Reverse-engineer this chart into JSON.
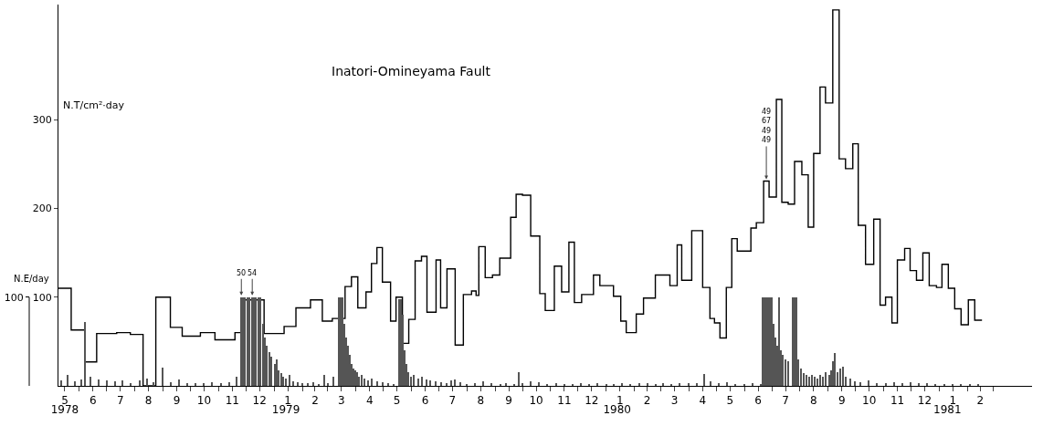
{
  "chart_data": {
    "type": "step",
    "title": "Inatori-Omineyama Fault",
    "ylabel": "N.T/cm²·day",
    "y2label": "N.E/day",
    "xlim": [
      "1978-05-09",
      "1981-04-13"
    ],
    "ylim": [
      0,
      430
    ],
    "yticks": [
      100,
      200,
      300
    ],
    "y2lim": [
      0,
      430
    ],
    "y2ticks": [
      100
    ],
    "xticks": [
      {
        "value": "1978-05-16",
        "label": "5"
      },
      {
        "value": "1978-06-01",
        "label": null
      },
      {
        "value": "1978-06-16",
        "label": "6"
      },
      {
        "value": "1978-07-01",
        "label": null
      },
      {
        "value": "1978-07-16",
        "label": "7"
      },
      {
        "value": "1978-08-01",
        "label": null
      },
      {
        "value": "1978-08-16",
        "label": "8"
      },
      {
        "value": "1978-09-01",
        "label": null
      },
      {
        "value": "1978-09-16",
        "label": "9"
      },
      {
        "value": "1978-10-01",
        "label": null
      },
      {
        "value": "1978-10-16",
        "label": "10"
      },
      {
        "value": "1978-11-01",
        "label": null
      },
      {
        "value": "1978-11-16",
        "label": "11"
      },
      {
        "value": "1978-12-01",
        "label": null
      },
      {
        "value": "1978-12-16",
        "label": "12"
      },
      {
        "value": "1979-01-01",
        "label": null
      },
      {
        "value": "1979-01-16",
        "label": "1"
      },
      {
        "value": "1979-02-01",
        "label": null
      },
      {
        "value": "1979-02-15",
        "label": "2"
      },
      {
        "value": "1979-03-01",
        "label": null
      },
      {
        "value": "1979-03-16",
        "label": "3"
      },
      {
        "value": "1979-04-01",
        "label": null
      },
      {
        "value": "1979-04-16",
        "label": "4"
      },
      {
        "value": "1979-05-01",
        "label": null
      },
      {
        "value": "1979-05-16",
        "label": "5"
      },
      {
        "value": "1979-06-01",
        "label": null
      },
      {
        "value": "1979-06-16",
        "label": "6"
      },
      {
        "value": "1979-07-01",
        "label": null
      },
      {
        "value": "1979-07-16",
        "label": "7"
      },
      {
        "value": "1979-08-01",
        "label": null
      },
      {
        "value": "1979-08-16",
        "label": "8"
      },
      {
        "value": "1979-09-01",
        "label": null
      },
      {
        "value": "1979-09-16",
        "label": "9"
      },
      {
        "value": "1979-10-01",
        "label": null
      },
      {
        "value": "1979-10-16",
        "label": "10"
      },
      {
        "value": "1979-11-01",
        "label": null
      },
      {
        "value": "1979-11-16",
        "label": "11"
      },
      {
        "value": "1979-12-01",
        "label": null
      },
      {
        "value": "1979-12-16",
        "label": "12"
      },
      {
        "value": "1980-01-01",
        "label": null
      },
      {
        "value": "1980-01-16",
        "label": "1"
      },
      {
        "value": "1980-02-01",
        "label": null
      },
      {
        "value": "1980-02-15",
        "label": "2"
      },
      {
        "value": "1980-03-01",
        "label": null
      },
      {
        "value": "1980-03-16",
        "label": "3"
      },
      {
        "value": "1980-04-01",
        "label": null
      },
      {
        "value": "1980-04-16",
        "label": "4"
      },
      {
        "value": "1980-05-01",
        "label": null
      },
      {
        "value": "1980-05-16",
        "label": "5"
      },
      {
        "value": "1980-06-01",
        "label": null
      },
      {
        "value": "1980-06-16",
        "label": "6"
      },
      {
        "value": "1980-07-01",
        "label": null
      },
      {
        "value": "1980-07-16",
        "label": "7"
      },
      {
        "value": "1980-08-01",
        "label": null
      },
      {
        "value": "1980-08-16",
        "label": "8"
      },
      {
        "value": "1980-09-01",
        "label": null
      },
      {
        "value": "1980-09-16",
        "label": "9"
      },
      {
        "value": "1980-10-01",
        "label": null
      },
      {
        "value": "1980-10-16",
        "label": "10"
      },
      {
        "value": "1980-11-01",
        "label": null
      },
      {
        "value": "1980-11-16",
        "label": "11"
      },
      {
        "value": "1980-12-01",
        "label": null
      },
      {
        "value": "1980-12-16",
        "label": "12"
      },
      {
        "value": "1981-01-01",
        "label": null
      },
      {
        "value": "1981-01-16",
        "label": "1"
      },
      {
        "value": "1981-02-01",
        "label": null
      },
      {
        "value": "1981-02-15",
        "label": "2"
      },
      {
        "value": "1981-03-01",
        "label": null
      }
    ],
    "x2lim": [
      "1978-05-09",
      "1981-04-13"
    ],
    "x2ticks": [
      {
        "value": "1978-05-16",
        "label": "1978"
      },
      {
        "value": "1979-01-14",
        "label": "1979"
      },
      {
        "value": "1980-01-13",
        "label": "1980"
      },
      {
        "value": "1981-01-10",
        "label": "1981"
      }
    ],
    "grid": false,
    "annotations": [
      {
        "text": "50",
        "x": "1978-11-26",
        "y": 100
      },
      {
        "text": "54",
        "x": "1978-12-08",
        "y": 100
      },
      {
        "text": "49\n67\n49\n49",
        "x": "1980-06-25",
        "y": 231
      }
    ],
    "series": [
      {
        "color": "#000000",
        "x": [
          "1978-05-09",
          "1978-05-23",
          "1978-06-07",
          "1978-06-20",
          "1978-07-12",
          "1978-07-27",
          "1978-08-10",
          "1978-08-24",
          "1978-09-09",
          "1978-09-22",
          "1978-10-12",
          "1978-10-28",
          "1978-11-19",
          "1978-11-26",
          "1978-12-21",
          "1979-01-12",
          "1979-01-25",
          "1979-02-10",
          "1979-02-23",
          "1979-03-06",
          "1979-03-12",
          "1979-03-20",
          "1979-03-27",
          "1979-04-03",
          "1979-04-12",
          "1979-04-18",
          "1979-04-24",
          "1979-04-30",
          "1979-05-09",
          "1979-05-15",
          "1979-05-22",
          "1979-05-29",
          "1979-06-05",
          "1979-06-12",
          "1979-06-18",
          "1979-06-28",
          "1979-07-03",
          "1979-07-10",
          "1979-07-19",
          "1979-07-28",
          "1979-08-06",
          "1979-08-11",
          "1979-08-14",
          "1979-08-21",
          "1979-08-29",
          "1979-09-06",
          "1979-09-18",
          "1979-09-24",
          "1979-10-01",
          "1979-10-10",
          "1979-10-20",
          "1979-10-26",
          "1979-11-05",
          "1979-11-13",
          "1979-11-21",
          "1979-11-27",
          "1979-12-05",
          "1979-12-18",
          "1979-12-25",
          "1980-01-09",
          "1980-01-17",
          "1980-01-23",
          "1980-02-03",
          "1980-02-11",
          "1980-02-24",
          "1980-03-11",
          "1980-03-19",
          "1980-03-24",
          "1980-04-04",
          "1980-04-16",
          "1980-04-24",
          "1980-04-29",
          "1980-05-05",
          "1980-05-12",
          "1980-05-18",
          "1980-05-24",
          "1980-06-08",
          "1980-06-14",
          "1980-06-22",
          "1980-06-28",
          "1980-07-06",
          "1980-07-12",
          "1980-07-19",
          "1980-07-26",
          "1980-08-03",
          "1980-08-10",
          "1980-08-16",
          "1980-08-23",
          "1980-08-29",
          "1980-09-06",
          "1980-09-13",
          "1980-09-20",
          "1980-09-28",
          "1980-10-04",
          "1980-10-12",
          "1980-10-21",
          "1980-10-28",
          "1980-11-03",
          "1980-11-10",
          "1980-11-16",
          "1980-11-24",
          "1980-11-30",
          "1980-12-07",
          "1980-12-14",
          "1980-12-21",
          "1980-12-29",
          "1981-01-04",
          "1981-01-11",
          "1981-01-18",
          "1981-01-25",
          "1981-02-02",
          "1981-02-09",
          "1981-02-17"
        ],
        "values": [
          110,
          63,
          27,
          59,
          60,
          58,
          0,
          100,
          66,
          56,
          60,
          52,
          60,
          97,
          59,
          67,
          88,
          97,
          73,
          76,
          76,
          112,
          123,
          88,
          106,
          138,
          156,
          117,
          73,
          100,
          48,
          75,
          141,
          146,
          83,
          142,
          88,
          132,
          46,
          103,
          107,
          102,
          157,
          122,
          125,
          144,
          190,
          216,
          215,
          169,
          104,
          85,
          135,
          106,
          162,
          94,
          103,
          125,
          113,
          101,
          73,
          60,
          81,
          99,
          125,
          113,
          159,
          119,
          175,
          111,
          76,
          71,
          54,
          111,
          166,
          152,
          178,
          184,
          231,
          213,
          323,
          207,
          205,
          253,
          238,
          179,
          262,
          337,
          319,
          424,
          256,
          245,
          273,
          181,
          137,
          188,
          91,
          100,
          71,
          142,
          155,
          130,
          119,
          150,
          113,
          111,
          137,
          110,
          87,
          69,
          97,
          74,
          74
        ]
      },
      {
        "type": "bar",
        "axis": "y2",
        "color": "#555555",
        "x": [
          "1978-05-12",
          "1978-05-19",
          "1978-05-27",
          "1978-06-03",
          "1978-06-07",
          "1978-06-13",
          "1978-06-22",
          "1978-07-01",
          "1978-07-10",
          "1978-07-19",
          "1978-07-28",
          "1978-08-07",
          "1978-08-15",
          "1978-08-22",
          "1978-09-01",
          "1978-09-10",
          "1978-09-19",
          "1978-09-28",
          "1978-10-07",
          "1978-10-16",
          "1978-10-25",
          "1978-11-04",
          "1978-11-13",
          "1978-11-21",
          "1978-11-26",
          "1978-11-28",
          "1978-11-30",
          "1978-12-03",
          "1978-12-05",
          "1978-12-08",
          "1978-12-10",
          "1978-12-12",
          "1978-12-15",
          "1978-12-17",
          "1978-12-20",
          "1978-12-22",
          "1978-12-24",
          "1978-12-27",
          "1978-12-29",
          "1979-01-02",
          "1979-01-04",
          "1979-01-06",
          "1979-01-09",
          "1979-01-11",
          "1979-01-14",
          "1979-01-18",
          "1979-01-22",
          "1979-01-27",
          "1979-02-01",
          "1979-02-07",
          "1979-02-13",
          "1979-02-19",
          "1979-02-25",
          "1979-03-01",
          "1979-03-07",
          "1979-03-13",
          "1979-03-15",
          "1979-03-17",
          "1979-03-19",
          "1979-03-21",
          "1979-03-23",
          "1979-03-25",
          "1979-03-27",
          "1979-03-29",
          "1979-03-31",
          "1979-04-02",
          "1979-04-04",
          "1979-04-07",
          "1979-04-10",
          "1979-04-15",
          "1979-04-19",
          "1979-04-25",
          "1979-05-01",
          "1979-05-07",
          "1979-05-13",
          "1979-05-19",
          "1979-05-21",
          "1979-05-23",
          "1979-05-25",
          "1979-05-27",
          "1979-05-29",
          "1979-06-01",
          "1979-06-04",
          "1979-06-09",
          "1979-06-13",
          "1979-06-18",
          "1979-06-22",
          "1979-06-28",
          "1979-07-04",
          "1979-07-10",
          "1979-07-15",
          "1979-07-19",
          "1979-07-25",
          "1979-08-01",
          "1979-08-10",
          "1979-08-19",
          "1979-08-28",
          "1979-09-07",
          "1979-09-13",
          "1979-09-22",
          "1979-09-27",
          "1979-10-01",
          "1979-10-10",
          "1979-10-19",
          "1979-10-28",
          "1979-11-07",
          "1979-11-16",
          "1979-11-25",
          "1979-12-04",
          "1979-12-13",
          "1979-12-22",
          "1980-01-01",
          "1980-01-10",
          "1980-01-19",
          "1980-01-28",
          "1980-02-07",
          "1980-02-16",
          "1980-02-25",
          "1980-03-04",
          "1980-03-13",
          "1980-03-22",
          "1980-04-01",
          "1980-04-10",
          "1980-04-18",
          "1980-04-25",
          "1980-05-04",
          "1980-05-13",
          "1980-05-22",
          "1980-06-01",
          "1980-06-10",
          "1980-06-19",
          "1980-06-21",
          "1980-06-23",
          "1980-06-25",
          "1980-06-27",
          "1980-06-29",
          "1980-07-01",
          "1980-07-03",
          "1980-07-05",
          "1980-07-07",
          "1980-07-09",
          "1980-07-11",
          "1980-07-13",
          "1980-07-16",
          "1980-07-19",
          "1980-07-24",
          "1980-07-26",
          "1980-07-28",
          "1980-07-30",
          "1980-08-02",
          "1980-08-05",
          "1980-08-08",
          "1980-08-11",
          "1980-08-14",
          "1980-08-17",
          "1980-08-20",
          "1980-08-23",
          "1980-08-26",
          "1980-08-29",
          "1980-09-02",
          "1980-09-04",
          "1980-09-06",
          "1980-09-08",
          "1980-09-11",
          "1980-09-14",
          "1980-09-17",
          "1980-09-20",
          "1980-09-25",
          "1980-10-01",
          "1980-10-07",
          "1980-10-16",
          "1980-10-25",
          "1980-11-04",
          "1980-11-13",
          "1980-11-22",
          "1980-12-01",
          "1980-12-10",
          "1980-12-19",
          "1980-12-28",
          "1981-01-07",
          "1981-01-16",
          "1981-01-25",
          "1981-02-04",
          "1981-02-13"
        ],
        "values": [
          6,
          12,
          5,
          7,
          72,
          10,
          7,
          6,
          5,
          6,
          3,
          6,
          8,
          4,
          21,
          4,
          7,
          3,
          3,
          3,
          4,
          3,
          4,
          10,
          100,
          100,
          100,
          100,
          100,
          100,
          100,
          100,
          100,
          100,
          70,
          55,
          45,
          38,
          33,
          25,
          30,
          18,
          14,
          10,
          8,
          12,
          5,
          4,
          3,
          3,
          4,
          2,
          12,
          3,
          10,
          100,
          100,
          100,
          70,
          55,
          45,
          35,
          25,
          20,
          18,
          15,
          10,
          12,
          8,
          6,
          8,
          5,
          4,
          3,
          2,
          98,
          98,
          80,
          40,
          25,
          15,
          10,
          12,
          8,
          10,
          7,
          6,
          5,
          4,
          3,
          6,
          7,
          4,
          2,
          3,
          5,
          3,
          2,
          3,
          2,
          15,
          3,
          5,
          4,
          2,
          3,
          2,
          2,
          3,
          2,
          3,
          2,
          2,
          3,
          2,
          3,
          3,
          2,
          3,
          2,
          3,
          3,
          3,
          13,
          5,
          3,
          4,
          2,
          2,
          3,
          2,
          100,
          100,
          100,
          100,
          100,
          100,
          70,
          55,
          45,
          100,
          40,
          35,
          30,
          28,
          100,
          100,
          100,
          30,
          20,
          14,
          12,
          10,
          12,
          10,
          8,
          12,
          10,
          15,
          12,
          18,
          28,
          37,
          15,
          20,
          22,
          10,
          8,
          5,
          4,
          6,
          3,
          3,
          4,
          3,
          4,
          3,
          3,
          2,
          2,
          2,
          2,
          2,
          2
        ]
      }
    ]
  }
}
